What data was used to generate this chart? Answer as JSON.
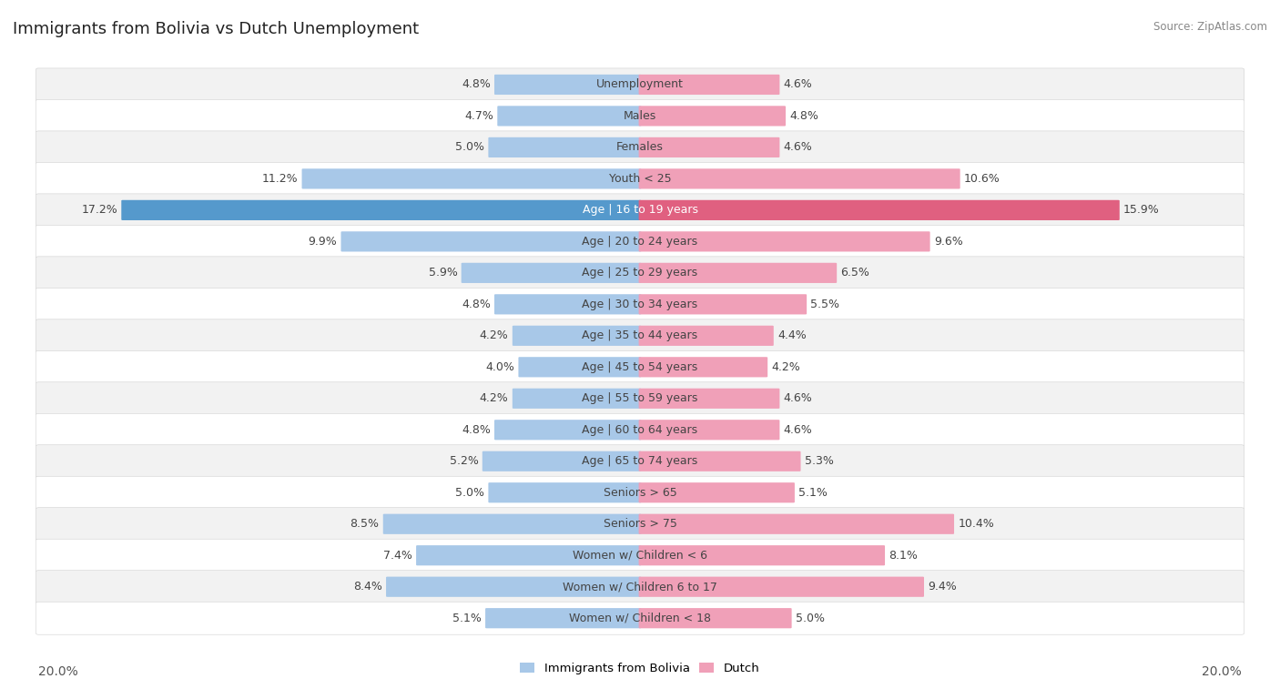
{
  "title": "Immigrants from Bolivia vs Dutch Unemployment",
  "source": "Source: ZipAtlas.com",
  "categories": [
    "Unemployment",
    "Males",
    "Females",
    "Youth < 25",
    "Age | 16 to 19 years",
    "Age | 20 to 24 years",
    "Age | 25 to 29 years",
    "Age | 30 to 34 years",
    "Age | 35 to 44 years",
    "Age | 45 to 54 years",
    "Age | 55 to 59 years",
    "Age | 60 to 64 years",
    "Age | 65 to 74 years",
    "Seniors > 65",
    "Seniors > 75",
    "Women w/ Children < 6",
    "Women w/ Children 6 to 17",
    "Women w/ Children < 18"
  ],
  "left_values": [
    4.8,
    4.7,
    5.0,
    11.2,
    17.2,
    9.9,
    5.9,
    4.8,
    4.2,
    4.0,
    4.2,
    4.8,
    5.2,
    5.0,
    8.5,
    7.4,
    8.4,
    5.1
  ],
  "right_values": [
    4.6,
    4.8,
    4.6,
    10.6,
    15.9,
    9.6,
    6.5,
    5.5,
    4.4,
    4.2,
    4.6,
    4.6,
    5.3,
    5.1,
    10.4,
    8.1,
    9.4,
    5.0
  ],
  "left_color": "#a8c8e8",
  "right_color": "#f0a0b8",
  "highlight_left_color": "#5599cc",
  "highlight_right_color": "#e06080",
  "highlight_row": 4,
  "row_bg_even": "#f2f2f2",
  "row_bg_odd": "#ffffff",
  "max_val": 20.0,
  "label_left": "Immigrants from Bolivia",
  "label_right": "Dutch",
  "title_fontsize": 13,
  "source_fontsize": 8.5,
  "axis_label_fontsize": 10,
  "category_fontsize": 9,
  "value_fontsize": 9
}
